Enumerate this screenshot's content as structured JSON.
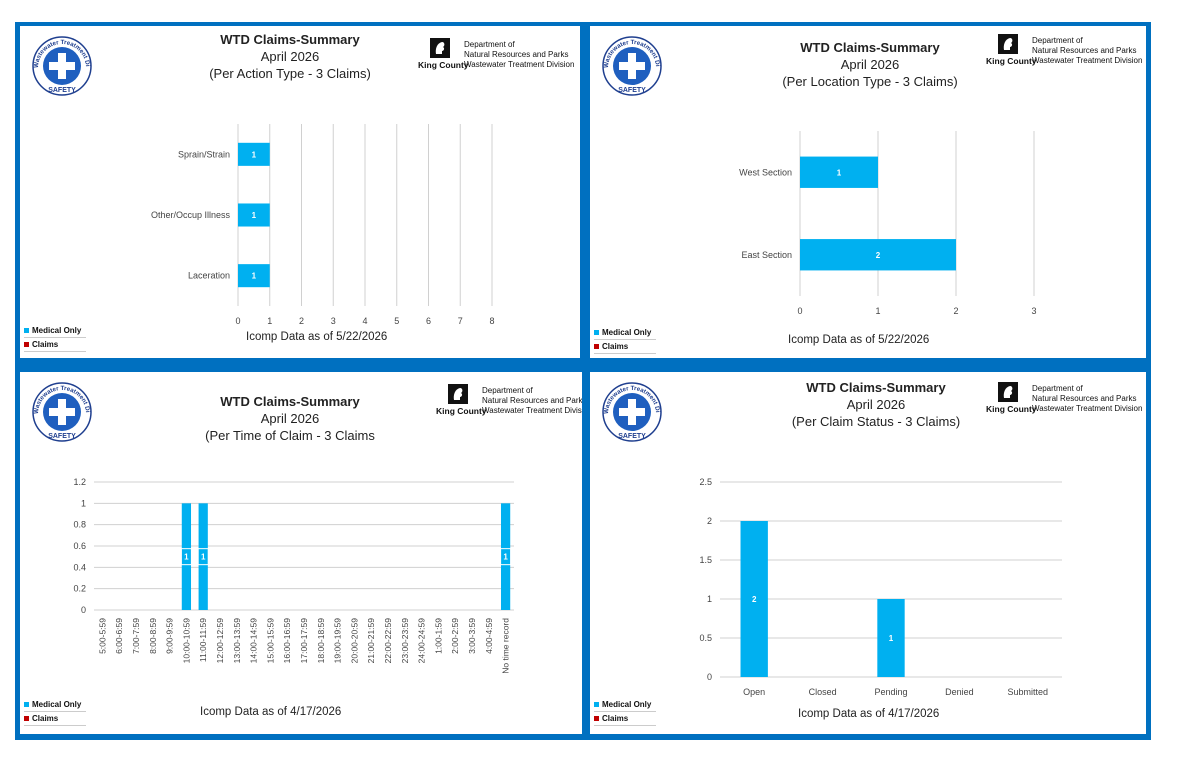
{
  "logo": {
    "ring_text": "Wastewater Treatment Division",
    "bottom_text": "SAFETY"
  },
  "king_county": {
    "name": "King County",
    "dept_line1": "Department of",
    "dept_line2": "Natural Resources and Parks",
    "dept_line3": "Wastewater Treatment Division"
  },
  "legend": [
    {
      "label": "Medical Only",
      "color": "#00b0f0"
    },
    {
      "label": "Claims",
      "color": "#c00000"
    }
  ],
  "colors": {
    "bar": "#00b0f0",
    "frame": "#0070c0",
    "grid": "#d0d0d0"
  },
  "panels": [
    {
      "title": "WTD Claims-Summary",
      "month": "April 2026",
      "subtitle": "(Per Action Type - 3 Claims)",
      "footer": "Icomp Data as of 5/22/2026"
    },
    {
      "title": "WTD Claims-Summary",
      "month": "April 2026",
      "subtitle": "(Per Location Type - 3 Claims)",
      "footer": "Icomp Data as of  5/22/2026"
    },
    {
      "title": "WTD Claims-Summary",
      "month": "April 2026",
      "subtitle": "(Per Time of Claim - 3 Claims",
      "footer": "Icomp Data as of 4/17/2026"
    },
    {
      "title": "WTD Claims-Summary",
      "month": "April 2026",
      "subtitle": "(Per Claim Status - 3 Claims)",
      "footer": "Icomp Data as of 4/17/2026"
    }
  ],
  "chart_data": [
    {
      "type": "bar",
      "orientation": "horizontal",
      "categories": [
        "Sprain/Strain",
        "Other/Occup Illness",
        "Laceration"
      ],
      "series": [
        {
          "values": [
            1,
            1,
            1
          ]
        }
      ],
      "xlim": [
        0,
        8
      ],
      "xticks": [
        0,
        1,
        2,
        3,
        4,
        5,
        6,
        7,
        8
      ],
      "grid": "vertical",
      "data_labels": [
        "1",
        "1",
        "1"
      ]
    },
    {
      "type": "bar",
      "orientation": "horizontal",
      "categories": [
        "West Section",
        "East Section"
      ],
      "series": [
        {
          "values": [
            1,
            2
          ]
        }
      ],
      "xlim": [
        0,
        3
      ],
      "xticks": [
        0,
        1,
        2,
        3
      ],
      "grid": "vertical",
      "data_labels": [
        "1",
        "2"
      ]
    },
    {
      "type": "bar",
      "orientation": "vertical",
      "categories": [
        "5:00-5:59",
        "6:00-6:59",
        "7:00-7:59",
        "8:00-8:59",
        "9:00-9:59",
        "10:00-10:59",
        "11:00-11:59",
        "12:00-12:59",
        "13:00-13:59",
        "14:00-14:59",
        "15:00-15:59",
        "16:00-16:59",
        "17:00-17:59",
        "18:00-18:59",
        "19:00-19:59",
        "20:00-20:59",
        "21:00-21:59",
        "22:00-22:59",
        "23:00-23:59",
        "24:00-24:59",
        "1:00-1:59",
        "2:00-2:59",
        "3:00-3:59",
        "4:00-4:59",
        "No time record"
      ],
      "series": [
        {
          "values": [
            0,
            0,
            0,
            0,
            0,
            1,
            1,
            0,
            0,
            0,
            0,
            0,
            0,
            0,
            0,
            0,
            0,
            0,
            0,
            0,
            0,
            0,
            0,
            0,
            1
          ]
        }
      ],
      "ylim": [
        0,
        1.2
      ],
      "yticks": [
        "0",
        "0.2",
        "0.4",
        "0.6",
        "0.8",
        "1",
        "1.2"
      ],
      "grid": "horizontal"
    },
    {
      "type": "bar",
      "orientation": "vertical",
      "categories": [
        "Open",
        "Closed",
        "Pending",
        "Denied",
        "Submitted"
      ],
      "series": [
        {
          "values": [
            2,
            0,
            1,
            0,
            0
          ]
        }
      ],
      "ylim": [
        0,
        2.5
      ],
      "yticks": [
        "0",
        "0.5",
        "1",
        "1.5",
        "2",
        "2.5"
      ],
      "grid": "horizontal"
    }
  ]
}
